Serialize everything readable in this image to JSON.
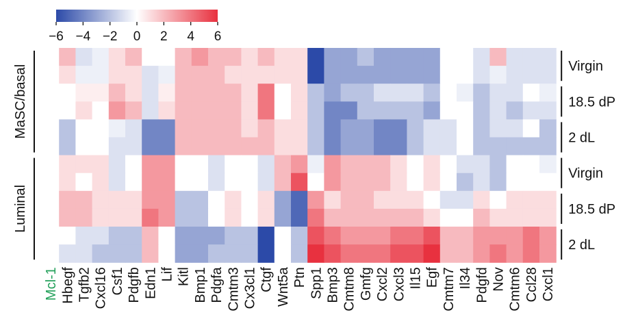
{
  "chart_data": {
    "type": "heatmap",
    "colorbar": {
      "min": -6,
      "max": 6,
      "ticks": [
        "−6",
        "−4",
        "−2",
        "0",
        "2",
        "4",
        "6"
      ],
      "low_color": "#2c4aa8",
      "mid_color": "#ffffff",
      "high_color": "#e8313f"
    },
    "row_groups": [
      {
        "label": "MaSC/basal",
        "subgroups": [
          "Virgin",
          "18.5 dP",
          "2 dL"
        ]
      },
      {
        "label": "Luminal",
        "subgroups": [
          "Virgin",
          "18.5 dP",
          "2 dL"
        ]
      }
    ],
    "columns": [
      "Mcl-1",
      "Hbegf",
      "Tgfb2",
      "Cxcl16",
      "Csf1",
      "Pdgfb",
      "Edn1",
      "Lif",
      "Kitl",
      "Bmp1",
      "Pdgfa",
      "Cmtm3",
      "Cx3cl1",
      "Ctgf",
      "Wnt5a",
      "Ptn",
      "Spp1",
      "Bmp3",
      "Cmtm8",
      "Gmfg",
      "Cxcl2",
      "Cxcl3",
      "Il15",
      "Egf",
      "Cmtm7",
      "Il34",
      "Pdgfd",
      "Nov",
      "Cmtm6",
      "Ccl28",
      "Cxcl1"
    ],
    "highlight_column": "Mcl-1",
    "highlight_color": "#22a05a",
    "values": [
      [
        0,
        2,
        -1,
        -0.5,
        1,
        2,
        0,
        0,
        2,
        3,
        2,
        2,
        1,
        2,
        1,
        1,
        -6,
        -3,
        -3,
        -2,
        -3,
        -3,
        -3,
        -3,
        0,
        0,
        -1,
        2,
        -1,
        -1,
        -1
      ],
      [
        0,
        1,
        -0.5,
        -0.5,
        1,
        1,
        -1,
        -0.5,
        2,
        2,
        2,
        1,
        1,
        1,
        1,
        1,
        -6,
        -3,
        -3,
        -3,
        -3,
        -3,
        -3,
        -3,
        0,
        0,
        -1,
        -0.5,
        -1,
        -1,
        -1
      ],
      [
        0,
        0,
        0.5,
        0.5,
        2,
        1,
        -1,
        0.5,
        2,
        2,
        2,
        2,
        1,
        4,
        0,
        1,
        -2,
        -3,
        -2,
        -2,
        -1,
        -1,
        -1,
        -2,
        0,
        -0.5,
        -2,
        -1,
        -1,
        0,
        -0.5
      ],
      [
        0,
        0,
        1,
        0,
        3,
        2,
        -1,
        1,
        2,
        2,
        2,
        2,
        1,
        4,
        0,
        1,
        -2,
        -4,
        -4,
        -2,
        -2,
        -2,
        -2,
        -3,
        0,
        0,
        -2,
        -1,
        -2,
        -1,
        -1
      ],
      [
        0,
        -2,
        0,
        0,
        -0.5,
        -1,
        -4,
        -4,
        2,
        2,
        2,
        2,
        1,
        2,
        1,
        1,
        -2,
        -4,
        -3,
        -3,
        -4,
        -4,
        -2,
        -1,
        -1,
        0,
        -2,
        -1,
        -1,
        0,
        -2
      ],
      [
        0,
        -2,
        0,
        0,
        -1,
        -1,
        -4,
        -4,
        2,
        2,
        2,
        2,
        2,
        2,
        1,
        1,
        -2,
        -4,
        -3,
        -3,
        -4,
        -4,
        -2,
        -1,
        -1,
        0,
        -2,
        -2,
        -2,
        -2,
        -2
      ],
      [
        0,
        1,
        1,
        1,
        -1,
        0,
        3,
        3,
        0,
        0,
        -1,
        0,
        0,
        -1,
        2,
        3,
        -0.5,
        3,
        2,
        2,
        2,
        1,
        0,
        1,
        0,
        -1,
        -1,
        -2,
        0,
        0,
        -0.5
      ],
      [
        0,
        1,
        0,
        1,
        -1,
        0,
        3,
        3,
        0,
        0,
        -1,
        0,
        0,
        -1,
        2,
        5,
        0,
        3,
        2,
        2,
        2,
        1,
        0,
        1,
        0,
        -2,
        -1,
        -2,
        0,
        0,
        0
      ],
      [
        0,
        2,
        2,
        1,
        1,
        1,
        3,
        3,
        -2,
        -2,
        0,
        1,
        0,
        1,
        -3,
        -5,
        3,
        1,
        2,
        2,
        1,
        1,
        1,
        0,
        -1,
        -1,
        1,
        0,
        1,
        1,
        1
      ],
      [
        0,
        2,
        2,
        1,
        1,
        1,
        4,
        3,
        -2,
        -2,
        0,
        1,
        0,
        1,
        -3,
        -5,
        4,
        2,
        2,
        2,
        2,
        2,
        2,
        1,
        0,
        0,
        2,
        1,
        1,
        1,
        1
      ],
      [
        0,
        0,
        -1,
        -1,
        -2,
        -2,
        2,
        0,
        -3,
        -3,
        -3,
        -2,
        -2,
        -6,
        0,
        -2,
        5,
        4,
        3,
        3,
        3,
        4,
        4,
        5,
        2,
        2,
        3,
        3,
        3,
        4,
        3
      ],
      [
        0,
        -1,
        -1,
        -2,
        -2,
        -2,
        2,
        0,
        -3,
        -3,
        -2,
        -2,
        -2,
        -6,
        0,
        -2,
        6,
        5,
        4,
        4,
        4,
        5,
        5,
        6,
        2,
        2,
        3,
        4,
        3,
        4,
        3
      ]
    ]
  }
}
